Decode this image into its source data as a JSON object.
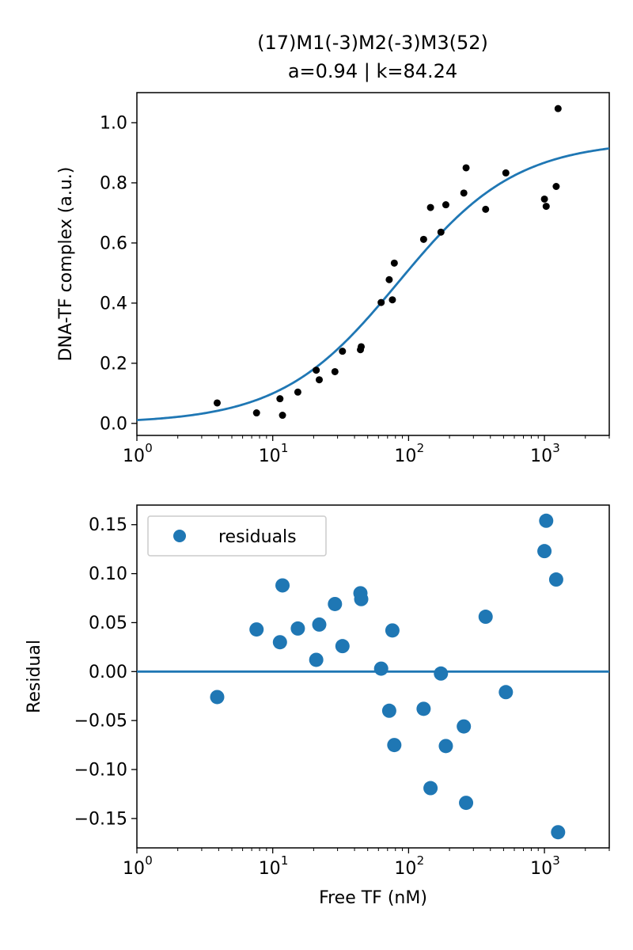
{
  "figure": {
    "title_line1": "(17)M1(-3)M2(-3)M3(52)",
    "title_line2": "a=0.94 | k=84.24"
  },
  "chart_data": [
    {
      "type": "scatter",
      "title": "(17)M1(-3)M2(-3)M3(52) a=0.94 | k=84.24",
      "xlabel": "",
      "ylabel": "DNA-TF complex (a.u.)",
      "xscale": "log",
      "xlim": [
        1,
        3000
      ],
      "ylim": [
        -0.04,
        1.1
      ],
      "xticks": [
        1,
        10,
        100,
        1000
      ],
      "xtick_labels": [
        "10",
        "10",
        "10",
        "10"
      ],
      "xtick_exponents": [
        "0",
        "1",
        "2",
        "3"
      ],
      "yticks": [
        0.0,
        0.2,
        0.4,
        0.6,
        0.8,
        1.0
      ],
      "ytick_labels": [
        "0.0",
        "0.2",
        "0.4",
        "0.6",
        "0.8",
        "1.0"
      ],
      "grid": false,
      "fit": {
        "a": 0.94,
        "k": 84.24,
        "color": "#1f77b4"
      },
      "point_color": "#000000",
      "points": [
        {
          "x": 3.9,
          "y": 0.068
        },
        {
          "x": 7.6,
          "y": 0.035
        },
        {
          "x": 11.3,
          "y": 0.082
        },
        {
          "x": 11.8,
          "y": 0.027
        },
        {
          "x": 15.3,
          "y": 0.104
        },
        {
          "x": 20.9,
          "y": 0.177
        },
        {
          "x": 22.0,
          "y": 0.145
        },
        {
          "x": 28.7,
          "y": 0.172
        },
        {
          "x": 32.6,
          "y": 0.24
        },
        {
          "x": 44.2,
          "y": 0.245
        },
        {
          "x": 44.8,
          "y": 0.255
        },
        {
          "x": 62.8,
          "y": 0.402
        },
        {
          "x": 72.0,
          "y": 0.478
        },
        {
          "x": 76.0,
          "y": 0.411
        },
        {
          "x": 78.5,
          "y": 0.533
        },
        {
          "x": 129.0,
          "y": 0.612
        },
        {
          "x": 145.0,
          "y": 0.718
        },
        {
          "x": 173.0,
          "y": 0.636
        },
        {
          "x": 188.0,
          "y": 0.727
        },
        {
          "x": 255.0,
          "y": 0.766
        },
        {
          "x": 265.0,
          "y": 0.85
        },
        {
          "x": 369.0,
          "y": 0.712
        },
        {
          "x": 520.0,
          "y": 0.833
        },
        {
          "x": 1000.0,
          "y": 0.746
        },
        {
          "x": 1030.0,
          "y": 0.722
        },
        {
          "x": 1220.0,
          "y": 0.788
        },
        {
          "x": 1260.0,
          "y": 1.047
        }
      ]
    },
    {
      "type": "scatter",
      "title": "",
      "xlabel": "Free TF (nM)",
      "ylabel": "Residual",
      "xscale": "log",
      "xlim": [
        1,
        3000
      ],
      "ylim": [
        -0.18,
        0.17
      ],
      "xticks": [
        1,
        10,
        100,
        1000
      ],
      "xtick_labels": [
        "10",
        "10",
        "10",
        "10"
      ],
      "xtick_exponents": [
        "0",
        "1",
        "2",
        "3"
      ],
      "yticks": [
        -0.15,
        -0.1,
        -0.05,
        0.0,
        0.05,
        0.1,
        0.15
      ],
      "ytick_labels": [
        "−0.15",
        "−0.10",
        "−0.05",
        "0.00",
        "0.05",
        "0.10",
        "0.15"
      ],
      "grid": false,
      "legend": {
        "label": "residuals",
        "position": "top-left"
      },
      "zero_line_color": "#1f77b4",
      "point_color": "#1f77b4",
      "points": [
        {
          "x": 3.9,
          "y": -0.026
        },
        {
          "x": 7.6,
          "y": 0.043
        },
        {
          "x": 11.3,
          "y": 0.03
        },
        {
          "x": 11.8,
          "y": 0.088
        },
        {
          "x": 15.3,
          "y": 0.044
        },
        {
          "x": 20.9,
          "y": 0.012
        },
        {
          "x": 22.0,
          "y": 0.048
        },
        {
          "x": 28.7,
          "y": 0.069
        },
        {
          "x": 32.6,
          "y": 0.026
        },
        {
          "x": 44.2,
          "y": 0.08
        },
        {
          "x": 44.8,
          "y": 0.074
        },
        {
          "x": 62.8,
          "y": 0.003
        },
        {
          "x": 72.0,
          "y": -0.04
        },
        {
          "x": 76.0,
          "y": 0.042
        },
        {
          "x": 78.5,
          "y": -0.075
        },
        {
          "x": 129.0,
          "y": -0.038
        },
        {
          "x": 145.0,
          "y": -0.119
        },
        {
          "x": 173.0,
          "y": -0.002
        },
        {
          "x": 188.0,
          "y": -0.076
        },
        {
          "x": 255.0,
          "y": -0.056
        },
        {
          "x": 265.0,
          "y": -0.134
        },
        {
          "x": 369.0,
          "y": 0.056
        },
        {
          "x": 520.0,
          "y": -0.021
        },
        {
          "x": 1000.0,
          "y": 0.123
        },
        {
          "x": 1030.0,
          "y": 0.154
        },
        {
          "x": 1220.0,
          "y": 0.094
        },
        {
          "x": 1260.0,
          "y": -0.164
        }
      ]
    }
  ]
}
